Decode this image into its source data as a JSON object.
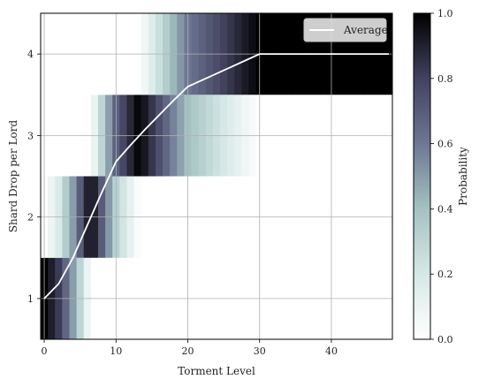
{
  "chart_data": {
    "type": "heatmap",
    "title": "",
    "xlabel": "Torment Level",
    "ylabel": "Shard Drop per Lord",
    "xlim": [
      -0.5,
      48.5
    ],
    "ylim": [
      0.5,
      4.5
    ],
    "xticks": [
      0,
      10,
      20,
      30,
      40
    ],
    "yticks": [
      1,
      2,
      3,
      4
    ],
    "grid": true,
    "colormap": "bone_r",
    "colorbar": {
      "label": "Probability",
      "range": [
        0.0,
        1.0
      ],
      "ticks": [
        "0.0",
        "0.2",
        "0.4",
        "0.6",
        "0.8",
        "1.0"
      ]
    },
    "legend": {
      "placement": "top-right",
      "entries": [
        "Average"
      ]
    },
    "rows": [
      1,
      2,
      3,
      4
    ],
    "x_levels_range": [
      0,
      48
    ],
    "series": [
      {
        "name": "Average",
        "type": "line",
        "color": "#ffffff",
        "x": [
          0,
          2,
          4,
          6,
          8,
          10,
          12,
          14,
          16,
          18,
          20,
          22,
          24,
          26,
          28,
          30,
          32,
          34,
          36,
          38,
          40,
          42,
          44,
          46,
          48
        ],
        "y": [
          1.0,
          1.18,
          1.5,
          1.9,
          2.3,
          2.68,
          2.88,
          3.07,
          3.25,
          3.43,
          3.6,
          3.68,
          3.76,
          3.84,
          3.92,
          4.0,
          4.0,
          4.0,
          4.0,
          4.0,
          4.0,
          4.0,
          4.0,
          4.0,
          4.0
        ]
      }
    ]
  }
}
